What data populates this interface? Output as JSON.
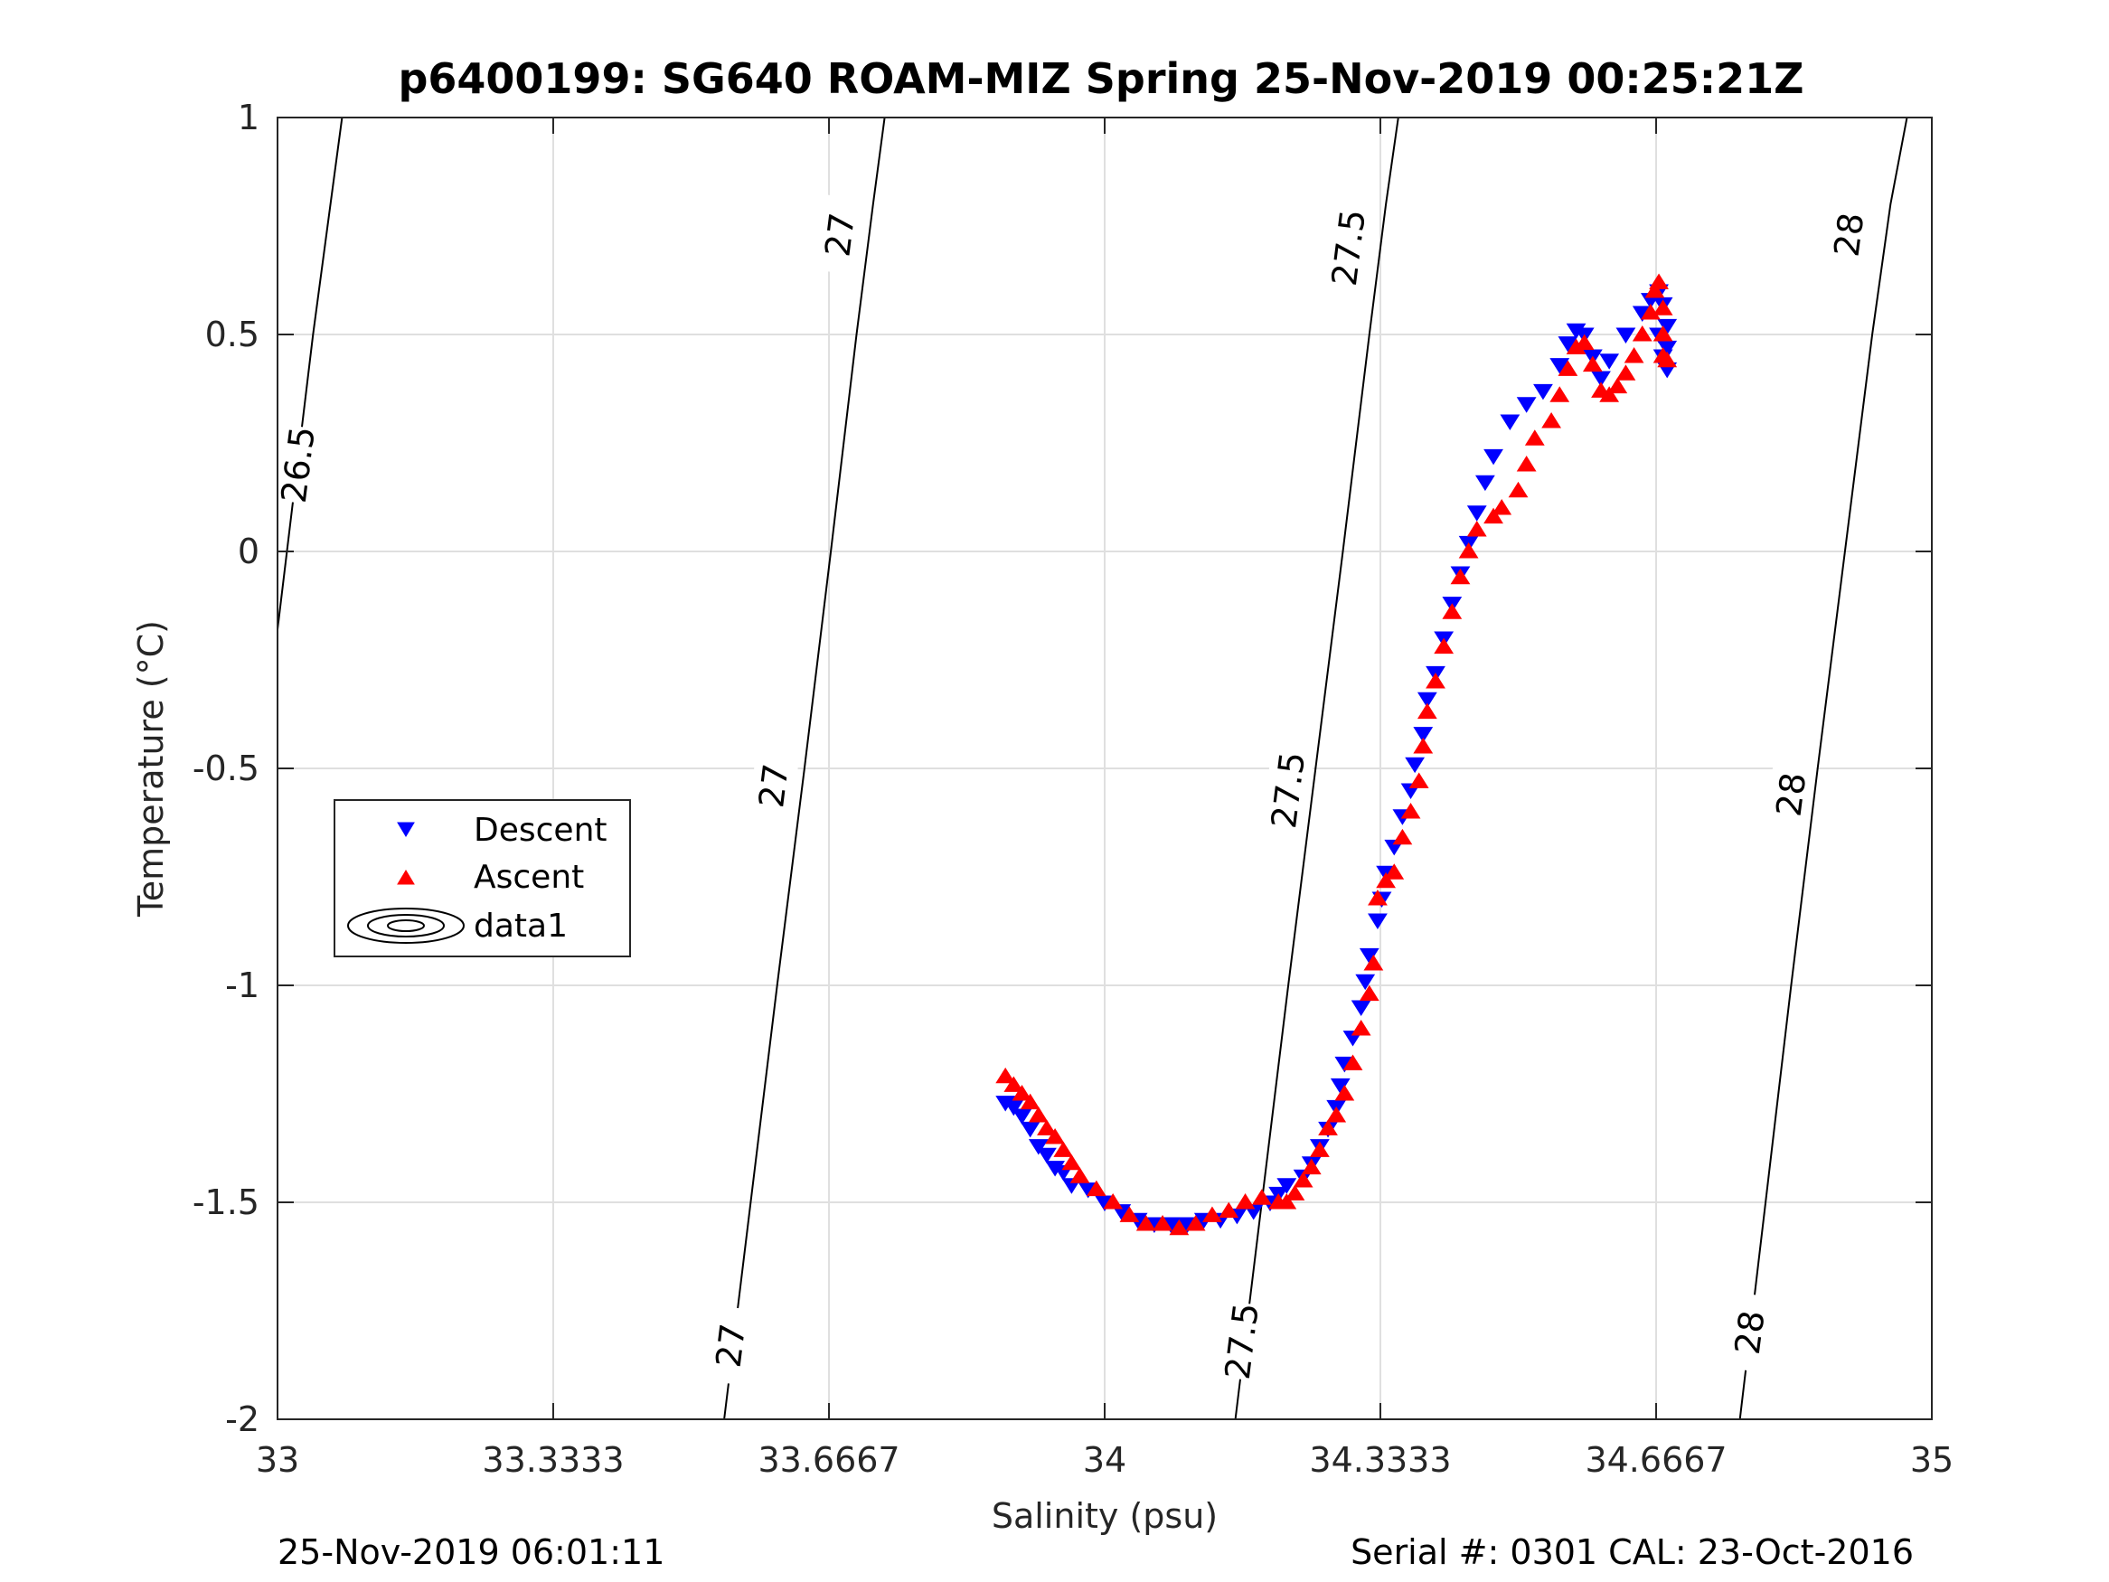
{
  "chart_data": {
    "type": "scatter",
    "title": "p6400199: SG640 ROAM-MIZ Spring 25-Nov-2019 00:25:21Z",
    "xlabel": "Salinity (psu)",
    "ylabel": "Temperature (°C)",
    "xlim": [
      33,
      35
    ],
    "ylim": [
      -2,
      1
    ],
    "x_ticks": [
      33,
      33.3333,
      33.6667,
      34,
      34.3333,
      34.6667,
      35
    ],
    "x_tick_labels": [
      "33",
      "33.3333",
      "33.6667",
      "34",
      "34.3333",
      "34.6667",
      "35"
    ],
    "y_ticks": [
      -2,
      -1.5,
      -1,
      -0.5,
      0,
      0.5,
      1
    ],
    "y_tick_labels": [
      "-2",
      "-1.5",
      "-1",
      "-0.5",
      "0",
      "0.5",
      "1"
    ],
    "grid": true,
    "legend": {
      "placement": "middle-left",
      "entries": [
        "Descent",
        "Ascent",
        "data1"
      ]
    },
    "colors": {
      "descent": "#0000ff",
      "ascent": "#ff0000",
      "contour": "#000000",
      "grid": "#dfdfdf"
    },
    "density_contours": [
      {
        "label": "26.5",
        "points": [
          [
            33.0,
            -0.18
          ],
          [
            33.043,
            0.5
          ],
          [
            33.078,
            1.0
          ]
        ],
        "label_positions": [
          {
            "x": 33.025,
            "y": 0.2
          }
        ]
      },
      {
        "label": "27",
        "points": [
          [
            33.54,
            -2.0
          ],
          [
            33.62,
            -0.8
          ],
          [
            33.71,
            0.3
          ],
          [
            33.7,
            0.4
          ],
          [
            33.75,
            0.8
          ],
          [
            33.7,
            0.6
          ],
          [
            33.7,
            0.75
          ],
          [
            33.7,
            0.85
          ],
          [
            33.7,
            0.95
          ],
          [
            33.7,
            1.0
          ]
        ],
        "polyline": [
          [
            33.54,
            -2.0
          ],
          [
            33.572,
            -1.5
          ],
          [
            33.604,
            -1.0
          ],
          [
            33.637,
            -0.5
          ],
          [
            33.669,
            0.0
          ],
          [
            33.7,
            0.5
          ],
          [
            33.72,
            0.8
          ],
          [
            33.734,
            1.0
          ]
        ],
        "label_positions": [
          {
            "x": 33.548,
            "y": -1.83
          },
          {
            "x": 33.6,
            "y": -0.54
          },
          {
            "x": 33.68,
            "y": 0.73
          }
        ]
      },
      {
        "label": "27.5",
        "polyline": [
          [
            34.158,
            -2.0
          ],
          [
            34.19,
            -1.5
          ],
          [
            34.222,
            -1.0
          ],
          [
            34.255,
            -0.5
          ],
          [
            34.288,
            0.0
          ],
          [
            34.32,
            0.5
          ],
          [
            34.34,
            0.8
          ],
          [
            34.355,
            1.0
          ]
        ],
        "label_positions": [
          {
            "x": 34.166,
            "y": -1.82
          },
          {
            "x": 34.222,
            "y": -0.55
          },
          {
            "x": 34.295,
            "y": 0.7
          }
        ]
      },
      {
        "label": "28",
        "polyline": [
          [
            34.768,
            -2.0
          ],
          [
            34.799,
            -1.5
          ],
          [
            34.83,
            -1.0
          ],
          [
            34.862,
            -0.5
          ],
          [
            34.895,
            0.0
          ],
          [
            34.928,
            0.5
          ],
          [
            34.95,
            0.8
          ],
          [
            34.97,
            1.0
          ]
        ],
        "label_positions": [
          {
            "x": 34.78,
            "y": -1.8
          },
          {
            "x": 34.83,
            "y": -0.56
          },
          {
            "x": 34.9,
            "y": 0.73
          }
        ]
      }
    ],
    "series": [
      {
        "name": "Descent",
        "marker": "down-triangle",
        "points": [
          [
            33.88,
            -1.27
          ],
          [
            33.89,
            -1.28
          ],
          [
            33.9,
            -1.3
          ],
          [
            33.91,
            -1.33
          ],
          [
            33.92,
            -1.37
          ],
          [
            33.93,
            -1.39
          ],
          [
            33.94,
            -1.42
          ],
          [
            33.95,
            -1.43
          ],
          [
            33.96,
            -1.46
          ],
          [
            33.98,
            -1.47
          ],
          [
            34.0,
            -1.5
          ],
          [
            34.02,
            -1.52
          ],
          [
            34.04,
            -1.54
          ],
          [
            34.06,
            -1.55
          ],
          [
            34.08,
            -1.55
          ],
          [
            34.1,
            -1.55
          ],
          [
            34.12,
            -1.54
          ],
          [
            34.14,
            -1.54
          ],
          [
            34.16,
            -1.53
          ],
          [
            34.18,
            -1.52
          ],
          [
            34.2,
            -1.5
          ],
          [
            34.21,
            -1.48
          ],
          [
            34.22,
            -1.46
          ],
          [
            34.24,
            -1.44
          ],
          [
            34.25,
            -1.41
          ],
          [
            34.26,
            -1.37
          ],
          [
            34.27,
            -1.33
          ],
          [
            34.28,
            -1.28
          ],
          [
            34.285,
            -1.23
          ],
          [
            34.29,
            -1.18
          ],
          [
            34.3,
            -1.12
          ],
          [
            34.31,
            -1.05
          ],
          [
            34.315,
            -0.99
          ],
          [
            34.32,
            -0.93
          ],
          [
            34.33,
            -0.85
          ],
          [
            34.335,
            -0.8
          ],
          [
            34.34,
            -0.74
          ],
          [
            34.35,
            -0.68
          ],
          [
            34.36,
            -0.61
          ],
          [
            34.37,
            -0.55
          ],
          [
            34.375,
            -0.49
          ],
          [
            34.385,
            -0.42
          ],
          [
            34.39,
            -0.34
          ],
          [
            34.4,
            -0.28
          ],
          [
            34.41,
            -0.2
          ],
          [
            34.42,
            -0.12
          ],
          [
            34.43,
            -0.05
          ],
          [
            34.44,
            0.02
          ],
          [
            34.45,
            0.09
          ],
          [
            34.46,
            0.16
          ],
          [
            34.47,
            0.22
          ],
          [
            34.49,
            0.3
          ],
          [
            34.51,
            0.34
          ],
          [
            34.53,
            0.37
          ],
          [
            34.55,
            0.43
          ],
          [
            34.56,
            0.48
          ],
          [
            34.57,
            0.51
          ],
          [
            34.58,
            0.5
          ],
          [
            34.59,
            0.45
          ],
          [
            34.6,
            0.4
          ],
          [
            34.61,
            0.44
          ],
          [
            34.63,
            0.5
          ],
          [
            34.65,
            0.55
          ],
          [
            34.66,
            0.58
          ],
          [
            34.67,
            0.6
          ],
          [
            34.675,
            0.57
          ],
          [
            34.68,
            0.52
          ],
          [
            34.68,
            0.47
          ],
          [
            34.68,
            0.42
          ],
          [
            34.675,
            0.45
          ],
          [
            34.67,
            0.5
          ]
        ]
      },
      {
        "name": "Ascent",
        "marker": "up-triangle",
        "points": [
          [
            33.88,
            -1.21
          ],
          [
            33.89,
            -1.23
          ],
          [
            33.9,
            -1.25
          ],
          [
            33.91,
            -1.27
          ],
          [
            33.92,
            -1.3
          ],
          [
            33.93,
            -1.33
          ],
          [
            33.94,
            -1.35
          ],
          [
            33.95,
            -1.38
          ],
          [
            33.96,
            -1.41
          ],
          [
            33.97,
            -1.44
          ],
          [
            33.99,
            -1.47
          ],
          [
            34.01,
            -1.5
          ],
          [
            34.03,
            -1.53
          ],
          [
            34.05,
            -1.55
          ],
          [
            34.07,
            -1.55
          ],
          [
            34.09,
            -1.56
          ],
          [
            34.11,
            -1.55
          ],
          [
            34.13,
            -1.53
          ],
          [
            34.15,
            -1.52
          ],
          [
            34.17,
            -1.5
          ],
          [
            34.19,
            -1.49
          ],
          [
            34.21,
            -1.5
          ],
          [
            34.22,
            -1.5
          ],
          [
            34.23,
            -1.48
          ],
          [
            34.24,
            -1.45
          ],
          [
            34.25,
            -1.42
          ],
          [
            34.26,
            -1.38
          ],
          [
            34.27,
            -1.33
          ],
          [
            34.28,
            -1.3
          ],
          [
            34.29,
            -1.25
          ],
          [
            34.3,
            -1.18
          ],
          [
            34.31,
            -1.1
          ],
          [
            34.32,
            -1.02
          ],
          [
            34.325,
            -0.95
          ],
          [
            34.33,
            -0.8
          ],
          [
            34.34,
            -0.76
          ],
          [
            34.35,
            -0.74
          ],
          [
            34.36,
            -0.66
          ],
          [
            34.37,
            -0.6
          ],
          [
            34.38,
            -0.53
          ],
          [
            34.385,
            -0.45
          ],
          [
            34.39,
            -0.37
          ],
          [
            34.4,
            -0.3
          ],
          [
            34.41,
            -0.22
          ],
          [
            34.42,
            -0.14
          ],
          [
            34.43,
            -0.06
          ],
          [
            34.44,
            0.0
          ],
          [
            34.45,
            0.05
          ],
          [
            34.47,
            0.08
          ],
          [
            34.48,
            0.1
          ],
          [
            34.5,
            0.14
          ],
          [
            34.51,
            0.2
          ],
          [
            34.52,
            0.26
          ],
          [
            34.54,
            0.3
          ],
          [
            34.55,
            0.36
          ],
          [
            34.56,
            0.42
          ],
          [
            34.57,
            0.47
          ],
          [
            34.58,
            0.48
          ],
          [
            34.59,
            0.43
          ],
          [
            34.6,
            0.37
          ],
          [
            34.61,
            0.36
          ],
          [
            34.62,
            0.38
          ],
          [
            34.63,
            0.41
          ],
          [
            34.64,
            0.45
          ],
          [
            34.65,
            0.5
          ],
          [
            34.66,
            0.55
          ],
          [
            34.665,
            0.6
          ],
          [
            34.67,
            0.62
          ],
          [
            34.675,
            0.56
          ],
          [
            34.675,
            0.5
          ],
          [
            34.675,
            0.45
          ],
          [
            34.68,
            0.44
          ]
        ]
      }
    ]
  },
  "footer": {
    "timestamp": "25-Nov-2019 06:01:11",
    "serial": "Serial #: 0301  CAL: 23-Oct-2016"
  }
}
